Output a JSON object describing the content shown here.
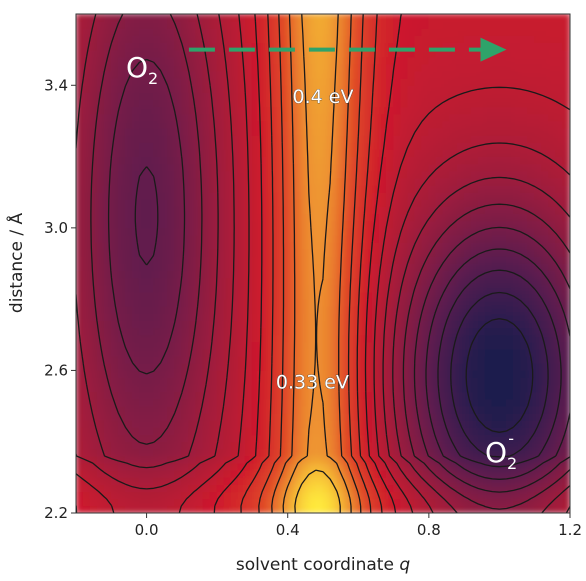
{
  "chart_data": {
    "type": "heatmap",
    "title": "",
    "xlabel_main": "solvent coordinate ",
    "xlabel_var": "q",
    "ylabel": "distance / Å",
    "xlim": [
      -0.2,
      1.2
    ],
    "ylim": [
      2.2,
      3.6
    ],
    "x_ticks": [
      {
        "value": 0.0,
        "label": "0.0"
      },
      {
        "value": 0.4,
        "label": "0.4"
      },
      {
        "value": 0.8,
        "label": "0.8"
      },
      {
        "value": 1.2,
        "label": "1.2"
      }
    ],
    "y_ticks": [
      {
        "value": 2.2,
        "label": "2.2"
      },
      {
        "value": 2.6,
        "label": "2.6"
      },
      {
        "value": 3.0,
        "label": "3.0"
      },
      {
        "value": 3.4,
        "label": "3.4"
      }
    ],
    "colors": {
      "low": "#1a1a4e",
      "mid_low": "#7a1d4a",
      "mid": "#c8102e",
      "mid_high": "#e8622a",
      "high": "#ffe83a",
      "arrow": "#2ea36a"
    },
    "minima": [
      {
        "label": "O2",
        "x": 0.0,
        "y": 3.05
      },
      {
        "label": "O2-",
        "x": 1.0,
        "y": 2.58
      }
    ],
    "annotations": [
      {
        "text": "0.4 eV",
        "x": 0.5,
        "y": 3.35
      },
      {
        "text": "0.33 eV",
        "x": 0.47,
        "y": 2.55
      }
    ],
    "species_labels": {
      "reactant_main": "O",
      "reactant_sub": "2",
      "product_main": "O",
      "product_sub": "2",
      "product_sup": "-"
    },
    "arrow": {
      "from": {
        "x": 0.12,
        "y": 3.5
      },
      "to": {
        "x": 1.02,
        "y": 3.5
      },
      "style": "dashed"
    }
  }
}
